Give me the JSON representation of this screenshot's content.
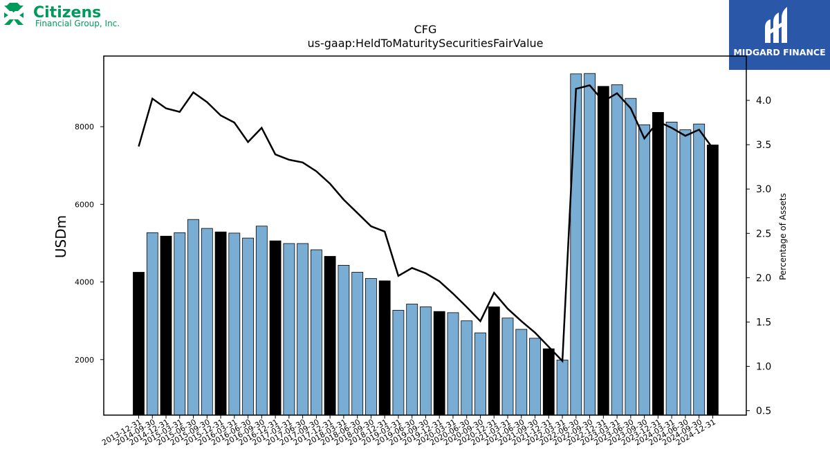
{
  "logos": {
    "left_brand": "Citizens",
    "left_sub": "Financial Group, Inc.",
    "right_brand": "MIDGARD FINANCE"
  },
  "colors": {
    "accent_green": "#009a5a",
    "bar_blue": "#7aadd3",
    "bar_black": "#000000",
    "line": "#000000",
    "midgard_blue": "#2b57a8"
  },
  "chart_data": {
    "type": "bar",
    "title": "CFG",
    "subtitle": "us-gaap:HeldToMaturitySecuritiesFairValue",
    "ylabel": "USDm",
    "y2label": "Percentage of Assets",
    "ylim": [
      570,
      9820
    ],
    "y2lim": [
      0.45,
      4.5
    ],
    "yticks": [
      2000,
      4000,
      6000,
      8000
    ],
    "y2ticks": [
      0.5,
      1.0,
      1.5,
      2.0,
      2.5,
      3.0,
      3.5,
      4.0
    ],
    "categories": [
      "2013-12-31",
      "2014-09-30",
      "2014-12-31",
      "2015-03-31",
      "2015-06-30",
      "2015-09-30",
      "2015-12-31",
      "2016-03-31",
      "2016-06-30",
      "2016-09-30",
      "2016-12-31",
      "2017-03-31",
      "2017-06-30",
      "2017-09-30",
      "2017-12-31",
      "2018-03-31",
      "2018-06-30",
      "2018-09-30",
      "2018-12-31",
      "2019-03-31",
      "2019-06-30",
      "2019-09-30",
      "2019-12-31",
      "2020-03-31",
      "2020-06-30",
      "2020-09-30",
      "2020-12-31",
      "2021-03-31",
      "2021-06-30",
      "2021-09-30",
      "2021-12-31",
      "2022-03-31",
      "2022-06-30",
      "2022-09-30",
      "2022-12-31",
      "2023-03-31",
      "2023-06-30",
      "2023-09-30",
      "2023-12-31",
      "2024-03-31",
      "2024-06-30",
      "2024-09-30",
      "2024-12-31"
    ],
    "series": [
      {
        "type": "bar",
        "axis": "left",
        "values": [
          4250,
          5270,
          5180,
          5270,
          5610,
          5380,
          5290,
          5260,
          5130,
          5440,
          5060,
          4990,
          4990,
          4830,
          4660,
          4430,
          4250,
          4090,
          4030,
          3270,
          3430,
          3360,
          3240,
          3210,
          3000,
          2690,
          3360,
          3070,
          2780,
          2550,
          2280,
          1990,
          9360,
          9370,
          9040,
          9080,
          8730,
          8050,
          8370,
          8120,
          7920,
          8070,
          7530
        ],
        "year_end_black": [
          true,
          false,
          true,
          false,
          false,
          false,
          true,
          false,
          false,
          false,
          true,
          false,
          false,
          false,
          true,
          false,
          false,
          false,
          true,
          false,
          false,
          false,
          true,
          false,
          false,
          false,
          true,
          false,
          false,
          false,
          true,
          false,
          false,
          false,
          true,
          false,
          false,
          false,
          true,
          false,
          false,
          false,
          true
        ]
      },
      {
        "type": "line",
        "axis": "right",
        "values": [
          3.48,
          4.02,
          3.91,
          3.87,
          4.09,
          3.98,
          3.83,
          3.75,
          3.53,
          3.69,
          3.39,
          3.33,
          3.3,
          3.2,
          3.06,
          2.88,
          2.73,
          2.58,
          2.52,
          2.02,
          2.11,
          2.05,
          1.96,
          1.82,
          1.67,
          1.51,
          1.83,
          1.65,
          1.51,
          1.38,
          1.22,
          1.06,
          4.13,
          4.17,
          3.99,
          4.08,
          3.91,
          3.57,
          3.76,
          3.69,
          3.6,
          3.67,
          3.46
        ]
      }
    ],
    "grid": false,
    "legend": "none"
  }
}
